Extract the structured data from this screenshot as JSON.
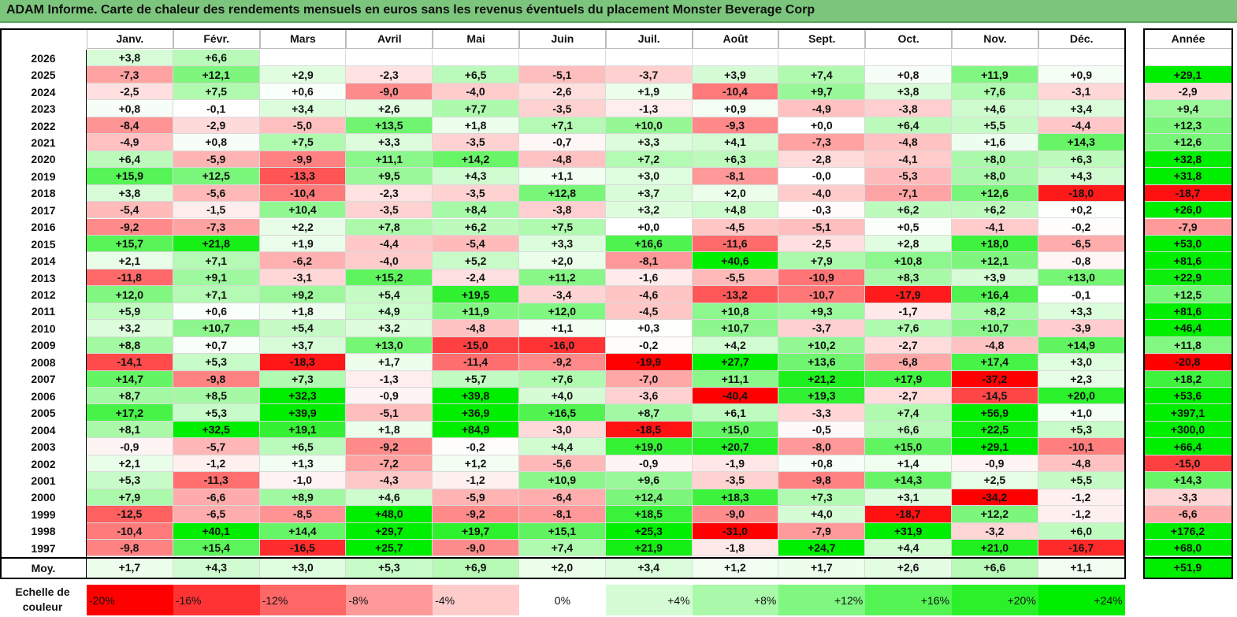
{
  "title": "ADAM Informe. Carte de chaleur des rendements mensuels en euros sans les revenus éventuels du placement Monster Beverage Corp",
  "chart_data": {
    "type": "heatmap",
    "columns": [
      "Janv.",
      "Févr.",
      "Mars",
      "Avril",
      "Mai",
      "Juin",
      "Juil.",
      "Août",
      "Sept.",
      "Oct.",
      "Nov.",
      "Déc."
    ],
    "year_header": "Année",
    "rows": [
      {
        "year": "2026",
        "values": [
          "+3,8",
          "+6,6",
          "",
          "",
          "",
          "",
          "",
          "",
          "",
          "",
          "",
          ""
        ],
        "annual": ""
      },
      {
        "year": "2025",
        "values": [
          "-7,3",
          "+12,1",
          "+2,9",
          "-2,3",
          "+6,5",
          "-5,1",
          "-3,7",
          "+3,9",
          "+7,4",
          "+0,8",
          "+11,9",
          "+0,9"
        ],
        "annual": "+29,1"
      },
      {
        "year": "2024",
        "values": [
          "-2,5",
          "+7,5",
          "+0,6",
          "-9,0",
          "-4,0",
          "-2,6",
          "+1,9",
          "-10,4",
          "+9,7",
          "+3,8",
          "+7,6",
          "-3,1"
        ],
        "annual": "-2,9"
      },
      {
        "year": "2023",
        "values": [
          "+0,8",
          "-0,1",
          "+3,4",
          "+2,6",
          "+7,7",
          "-3,5",
          "-1,3",
          "+0,9",
          "-4,9",
          "-3,8",
          "+4,6",
          "+3,4"
        ],
        "annual": "+9,4"
      },
      {
        "year": "2022",
        "values": [
          "-8,4",
          "-2,9",
          "-5,0",
          "+13,5",
          "+1,8",
          "+7,1",
          "+10,0",
          "-9,3",
          "+0,0",
          "+6,4",
          "+5,5",
          "-4,4"
        ],
        "annual": "+12,3"
      },
      {
        "year": "2021",
        "values": [
          "-4,9",
          "+0,8",
          "+7,5",
          "+3,3",
          "-3,5",
          "-0,7",
          "+3,3",
          "+4,1",
          "-7,3",
          "-4,8",
          "+1,6",
          "+14,3"
        ],
        "annual": "+12,6"
      },
      {
        "year": "2020",
        "values": [
          "+6,4",
          "-5,9",
          "-9,9",
          "+11,1",
          "+14,2",
          "-4,8",
          "+7,2",
          "+6,3",
          "-2,8",
          "-4,1",
          "+8,0",
          "+6,3"
        ],
        "annual": "+32,8"
      },
      {
        "year": "2019",
        "values": [
          "+15,9",
          "+12,5",
          "-13,3",
          "+9,5",
          "+4,3",
          "+1,1",
          "+3,0",
          "-8,1",
          "-0,0",
          "-5,3",
          "+8,0",
          "+4,3"
        ],
        "annual": "+31,8"
      },
      {
        "year": "2018",
        "values": [
          "+3,8",
          "-5,6",
          "-10,4",
          "-2,3",
          "-3,5",
          "+12,8",
          "+3,7",
          "+2,0",
          "-4,0",
          "-7,1",
          "+12,6",
          "-18,0"
        ],
        "annual": "-18,7"
      },
      {
        "year": "2017",
        "values": [
          "-5,4",
          "-1,5",
          "+10,4",
          "-3,5",
          "+8,4",
          "-3,8",
          "+3,2",
          "+4,8",
          "-0,3",
          "+6,2",
          "+6,2",
          "+0,2"
        ],
        "annual": "+26,0"
      },
      {
        "year": "2016",
        "values": [
          "-9,2",
          "-7,3",
          "+2,2",
          "+7,8",
          "+6,2",
          "+7,5",
          "+0,0",
          "-4,5",
          "-5,1",
          "+0,5",
          "-4,1",
          "-0,2"
        ],
        "annual": "-7,9"
      },
      {
        "year": "2015",
        "values": [
          "+15,7",
          "+21,8",
          "+1,9",
          "-4,4",
          "-5,4",
          "+3,3",
          "+16,6",
          "-11,6",
          "-2,5",
          "+2,8",
          "+18,0",
          "-6,5"
        ],
        "annual": "+53,0"
      },
      {
        "year": "2014",
        "values": [
          "+2,1",
          "+7,1",
          "-6,2",
          "-4,0",
          "+5,2",
          "+2,0",
          "-8,1",
          "+40,6",
          "+7,9",
          "+10,8",
          "+12,1",
          "-0,8"
        ],
        "annual": "+81,6"
      },
      {
        "year": "2013",
        "values": [
          "-11,8",
          "+9,1",
          "-3,1",
          "+15,2",
          "-2,4",
          "+11,2",
          "-1,6",
          "-5,5",
          "-10,9",
          "+8,3",
          "+3,9",
          "+13,0"
        ],
        "annual": "+22,9"
      },
      {
        "year": "2012",
        "values": [
          "+12,0",
          "+7,1",
          "+9,2",
          "+5,4",
          "+19,5",
          "-3,4",
          "-4,6",
          "-13,2",
          "-10,7",
          "-17,9",
          "+16,4",
          "-0,1"
        ],
        "annual": "+12,5"
      },
      {
        "year": "2011",
        "values": [
          "+5,9",
          "+0,6",
          "+1,8",
          "+4,9",
          "+11,9",
          "+12,0",
          "-4,5",
          "+10,8",
          "+9,3",
          "-1,7",
          "+8,2",
          "+3,3"
        ],
        "annual": "+81,6"
      },
      {
        "year": "2010",
        "values": [
          "+3,2",
          "+10,7",
          "+5,4",
          "+3,2",
          "-4,8",
          "+1,1",
          "+0,3",
          "+10,7",
          "-3,7",
          "+7,6",
          "+10,7",
          "-3,9"
        ],
        "annual": "+46,4"
      },
      {
        "year": "2009",
        "values": [
          "+8,8",
          "+0,7",
          "+3,7",
          "+13,0",
          "-15,0",
          "-16,0",
          "-0,2",
          "+4,2",
          "+10,2",
          "-2,7",
          "-4,8",
          "+14,9"
        ],
        "annual": "+11,8"
      },
      {
        "year": "2008",
        "values": [
          "-14,1",
          "+5,3",
          "-18,3",
          "+1,7",
          "-11,4",
          "-9,2",
          "-19,9",
          "+27,7",
          "+13,6",
          "-6,8",
          "+17,4",
          "+3,0"
        ],
        "annual": "-20,8"
      },
      {
        "year": "2007",
        "values": [
          "+14,7",
          "-9,8",
          "+7,3",
          "-1,3",
          "+5,7",
          "+7,6",
          "-7,0",
          "+11,1",
          "+21,2",
          "+17,9",
          "-37,2",
          "+2,3"
        ],
        "annual": "+18,2"
      },
      {
        "year": "2006",
        "values": [
          "+8,7",
          "+8,5",
          "+32,3",
          "-0,9",
          "+39,8",
          "+4,0",
          "-3,6",
          "-40,4",
          "+19,3",
          "-2,7",
          "-14,5",
          "+20,0"
        ],
        "annual": "+53,6"
      },
      {
        "year": "2005",
        "values": [
          "+17,2",
          "+5,3",
          "+39,9",
          "-5,1",
          "+36,9",
          "+16,5",
          "+8,7",
          "+6,1",
          "-3,3",
          "+7,4",
          "+56,9",
          "+1,0"
        ],
        "annual": "+397,1"
      },
      {
        "year": "2004",
        "values": [
          "+8,1",
          "+32,5",
          "+19,1",
          "+1,8",
          "+84,9",
          "-3,0",
          "-18,5",
          "+15,0",
          "-0,5",
          "+6,6",
          "+22,5",
          "+5,3"
        ],
        "annual": "+300,0"
      },
      {
        "year": "2003",
        "values": [
          "-0,9",
          "-5,7",
          "+6,5",
          "-9,2",
          "-0,2",
          "+4,4",
          "+19,0",
          "+20,7",
          "-8,0",
          "+15,0",
          "+29,1",
          "-10,1"
        ],
        "annual": "+66,4"
      },
      {
        "year": "2002",
        "values": [
          "+2,1",
          "-1,2",
          "+1,3",
          "-7,2",
          "+1,2",
          "-5,6",
          "-0,9",
          "-1,9",
          "+0,8",
          "+1,4",
          "-0,9",
          "-4,8"
        ],
        "annual": "-15,0"
      },
      {
        "year": "2001",
        "values": [
          "+5,3",
          "-11,3",
          "-1,0",
          "-4,3",
          "-1,2",
          "+10,9",
          "+9,6",
          "-3,5",
          "-9,8",
          "+14,3",
          "+2,5",
          "+5,5"
        ],
        "annual": "+14,3"
      },
      {
        "year": "2000",
        "values": [
          "+7,9",
          "-6,6",
          "+8,9",
          "+4,6",
          "-5,9",
          "-6,4",
          "+12,4",
          "+18,3",
          "+7,3",
          "+3,1",
          "-34,2",
          "-1,2"
        ],
        "annual": "-3,3"
      },
      {
        "year": "1999",
        "values": [
          "-12,5",
          "-6,5",
          "-8,5",
          "+48,0",
          "-9,2",
          "-8,1",
          "+18,5",
          "-9,0",
          "+4,0",
          "-18,7",
          "+12,2",
          "-1,2"
        ],
        "annual": "-6,6"
      },
      {
        "year": "1998",
        "values": [
          "-10,4",
          "+40,1",
          "+14,4",
          "+29,7",
          "+19,7",
          "+15,1",
          "+25,3",
          "-31,0",
          "-7,9",
          "+31,9",
          "-3,2",
          "+6,0"
        ],
        "annual": "+176,2"
      },
      {
        "year": "1997",
        "values": [
          "-9,8",
          "+15,4",
          "-16,5",
          "+25,7",
          "-9,0",
          "+7,4",
          "+21,9",
          "-1,8",
          "+24,7",
          "+4,4",
          "+21,0",
          "-16,7"
        ],
        "annual": "+68,0"
      }
    ],
    "average": {
      "label": "Moy.",
      "values": [
        "+1,7",
        "+4,3",
        "+3,0",
        "+5,3",
        "+6,9",
        "+2,0",
        "+3,4",
        "+1,2",
        "+1,7",
        "+2,6",
        "+6,6",
        "+1,1"
      ],
      "annual": "+51,9"
    },
    "scale": {
      "label": "Echelle de couleur",
      "stops": [
        "-20%",
        "-16%",
        "-12%",
        "-8%",
        "-4%",
        "0%",
        "+4%",
        "+8%",
        "+12%",
        "+16%",
        "+20%",
        "+24%"
      ]
    },
    "colors": {
      "negative": "#ff0000",
      "neutral": "#ffffff",
      "positive": "#00e000",
      "title_bar": "#7cc57c"
    }
  }
}
